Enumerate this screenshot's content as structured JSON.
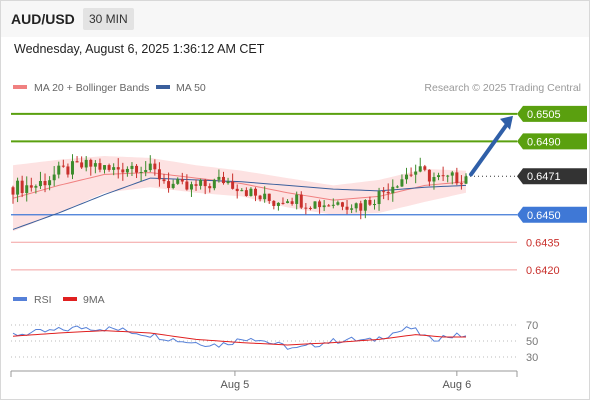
{
  "header": {
    "symbol": "AUD/USD",
    "timeframe": "30 MIN",
    "datetime": "Wednesday, August 6, 2025 1:36:12 AM CET"
  },
  "legend": {
    "ma20": "MA 20 + Bollinger Bands",
    "ma50": "MA 50",
    "credit": "Research © 2025 Trading Central",
    "rsi": "RSI",
    "rsi_ma": "9MA"
  },
  "colors": {
    "ma20": "#f08080",
    "ma50": "#3a5f9c",
    "band_fill": "#fde2e2",
    "resistance": "#5aa00f",
    "support": "#3f78d6",
    "target_low": "#f3a0a0",
    "current": "#333333",
    "arrow": "#2f5fa8",
    "candle_up": "#3c8c2c",
    "candle_down": "#c9302c",
    "rsi": "#5580d8",
    "rsi_ma": "#e02020"
  },
  "chart_data": [
    {
      "type": "candlestick",
      "title": "AUD/USD",
      "timeframe": "30 MIN",
      "x_ticks": [
        "Aug 5",
        "Aug 6"
      ],
      "ylim": [
        0.6415,
        0.6512
      ],
      "levels": [
        {
          "value": 0.6505,
          "label": "0.6505",
          "kind": "resistance"
        },
        {
          "value": 0.649,
          "label": "0.6490",
          "kind": "resistance"
        },
        {
          "value": 0.6471,
          "label": "0.6471",
          "kind": "current"
        },
        {
          "value": 0.645,
          "label": "0.6450",
          "kind": "support"
        },
        {
          "value": 0.6435,
          "label": "0.6435",
          "kind": "target_low"
        },
        {
          "value": 0.642,
          "label": "0.6420",
          "kind": "target_low"
        }
      ],
      "price_path": [
        [
          0,
          0.6465
        ],
        [
          5,
          0.6466
        ],
        [
          10,
          0.6473
        ],
        [
          14,
          0.6476
        ],
        [
          18,
          0.6477
        ],
        [
          21,
          0.6474
        ],
        [
          24,
          0.6476
        ],
        [
          27,
          0.6477
        ],
        [
          31,
          0.6473
        ],
        [
          34,
          0.6467
        ],
        [
          38,
          0.6464
        ],
        [
          42,
          0.6466
        ],
        [
          46,
          0.6469
        ],
        [
          50,
          0.6465
        ],
        [
          53,
          0.646
        ],
        [
          57,
          0.6457
        ],
        [
          60,
          0.646
        ],
        [
          64,
          0.6457
        ],
        [
          68,
          0.6456
        ],
        [
          72,
          0.6457
        ],
        [
          76,
          0.6455
        ],
        [
          80,
          0.6461
        ],
        [
          83,
          0.6467
        ],
        [
          86,
          0.6472
        ],
        [
          88,
          0.6474
        ],
        [
          91,
          0.6471
        ],
        [
          94,
          0.6469
        ],
        [
          97,
          0.647
        ],
        [
          99,
          0.6471
        ]
      ],
      "ma20_path": [
        [
          0,
          0.6459
        ],
        [
          10,
          0.6466
        ],
        [
          20,
          0.6472
        ],
        [
          30,
          0.6473
        ],
        [
          40,
          0.647
        ],
        [
          50,
          0.6467
        ],
        [
          60,
          0.6462
        ],
        [
          70,
          0.6458
        ],
        [
          80,
          0.646
        ],
        [
          90,
          0.6466
        ],
        [
          99,
          0.6468
        ]
      ],
      "ma50_path": [
        [
          0,
          0.6442
        ],
        [
          10,
          0.6451
        ],
        [
          20,
          0.6461
        ],
        [
          30,
          0.647
        ],
        [
          40,
          0.6469
        ],
        [
          50,
          0.6468
        ],
        [
          60,
          0.6466
        ],
        [
          70,
          0.6464
        ],
        [
          80,
          0.6463
        ],
        [
          90,
          0.6465
        ],
        [
          99,
          0.6466
        ]
      ],
      "band_upper": [
        [
          0,
          0.6477
        ],
        [
          10,
          0.648
        ],
        [
          20,
          0.6482
        ],
        [
          30,
          0.6481
        ],
        [
          40,
          0.6477
        ],
        [
          50,
          0.6474
        ],
        [
          60,
          0.647
        ],
        [
          70,
          0.6466
        ],
        [
          80,
          0.6469
        ],
        [
          90,
          0.6475
        ],
        [
          99,
          0.6474
        ]
      ],
      "band_lower": [
        [
          0,
          0.6441
        ],
        [
          10,
          0.6451
        ],
        [
          20,
          0.6462
        ],
        [
          30,
          0.6465
        ],
        [
          40,
          0.6462
        ],
        [
          50,
          0.646
        ],
        [
          60,
          0.6454
        ],
        [
          70,
          0.645
        ],
        [
          80,
          0.6451
        ],
        [
          90,
          0.6457
        ],
        [
          99,
          0.6462
        ]
      ]
    },
    {
      "type": "line",
      "title": "RSI",
      "y_ticks": [
        "70",
        "50",
        "30"
      ],
      "ylim": [
        20,
        80
      ],
      "series": [
        {
          "name": "RSI",
          "points": [
            [
              0,
              58
            ],
            [
              8,
              62
            ],
            [
              15,
              67
            ],
            [
              22,
              65
            ],
            [
              30,
              58
            ],
            [
              37,
              50
            ],
            [
              45,
              45
            ],
            [
              52,
              55
            ],
            [
              58,
              45
            ],
            [
              62,
              40
            ],
            [
              68,
              48
            ],
            [
              73,
              52
            ],
            [
              78,
              50
            ],
            [
              83,
              60
            ],
            [
              87,
              66
            ],
            [
              91,
              52
            ],
            [
              95,
              56
            ],
            [
              99,
              57
            ]
          ]
        },
        {
          "name": "9MA",
          "points": [
            [
              0,
              56
            ],
            [
              10,
              60
            ],
            [
              20,
              63
            ],
            [
              30,
              60
            ],
            [
              40,
              52
            ],
            [
              50,
              48
            ],
            [
              60,
              45
            ],
            [
              70,
              48
            ],
            [
              80,
              52
            ],
            [
              88,
              58
            ],
            [
              94,
              55
            ],
            [
              99,
              55
            ]
          ]
        }
      ]
    }
  ]
}
